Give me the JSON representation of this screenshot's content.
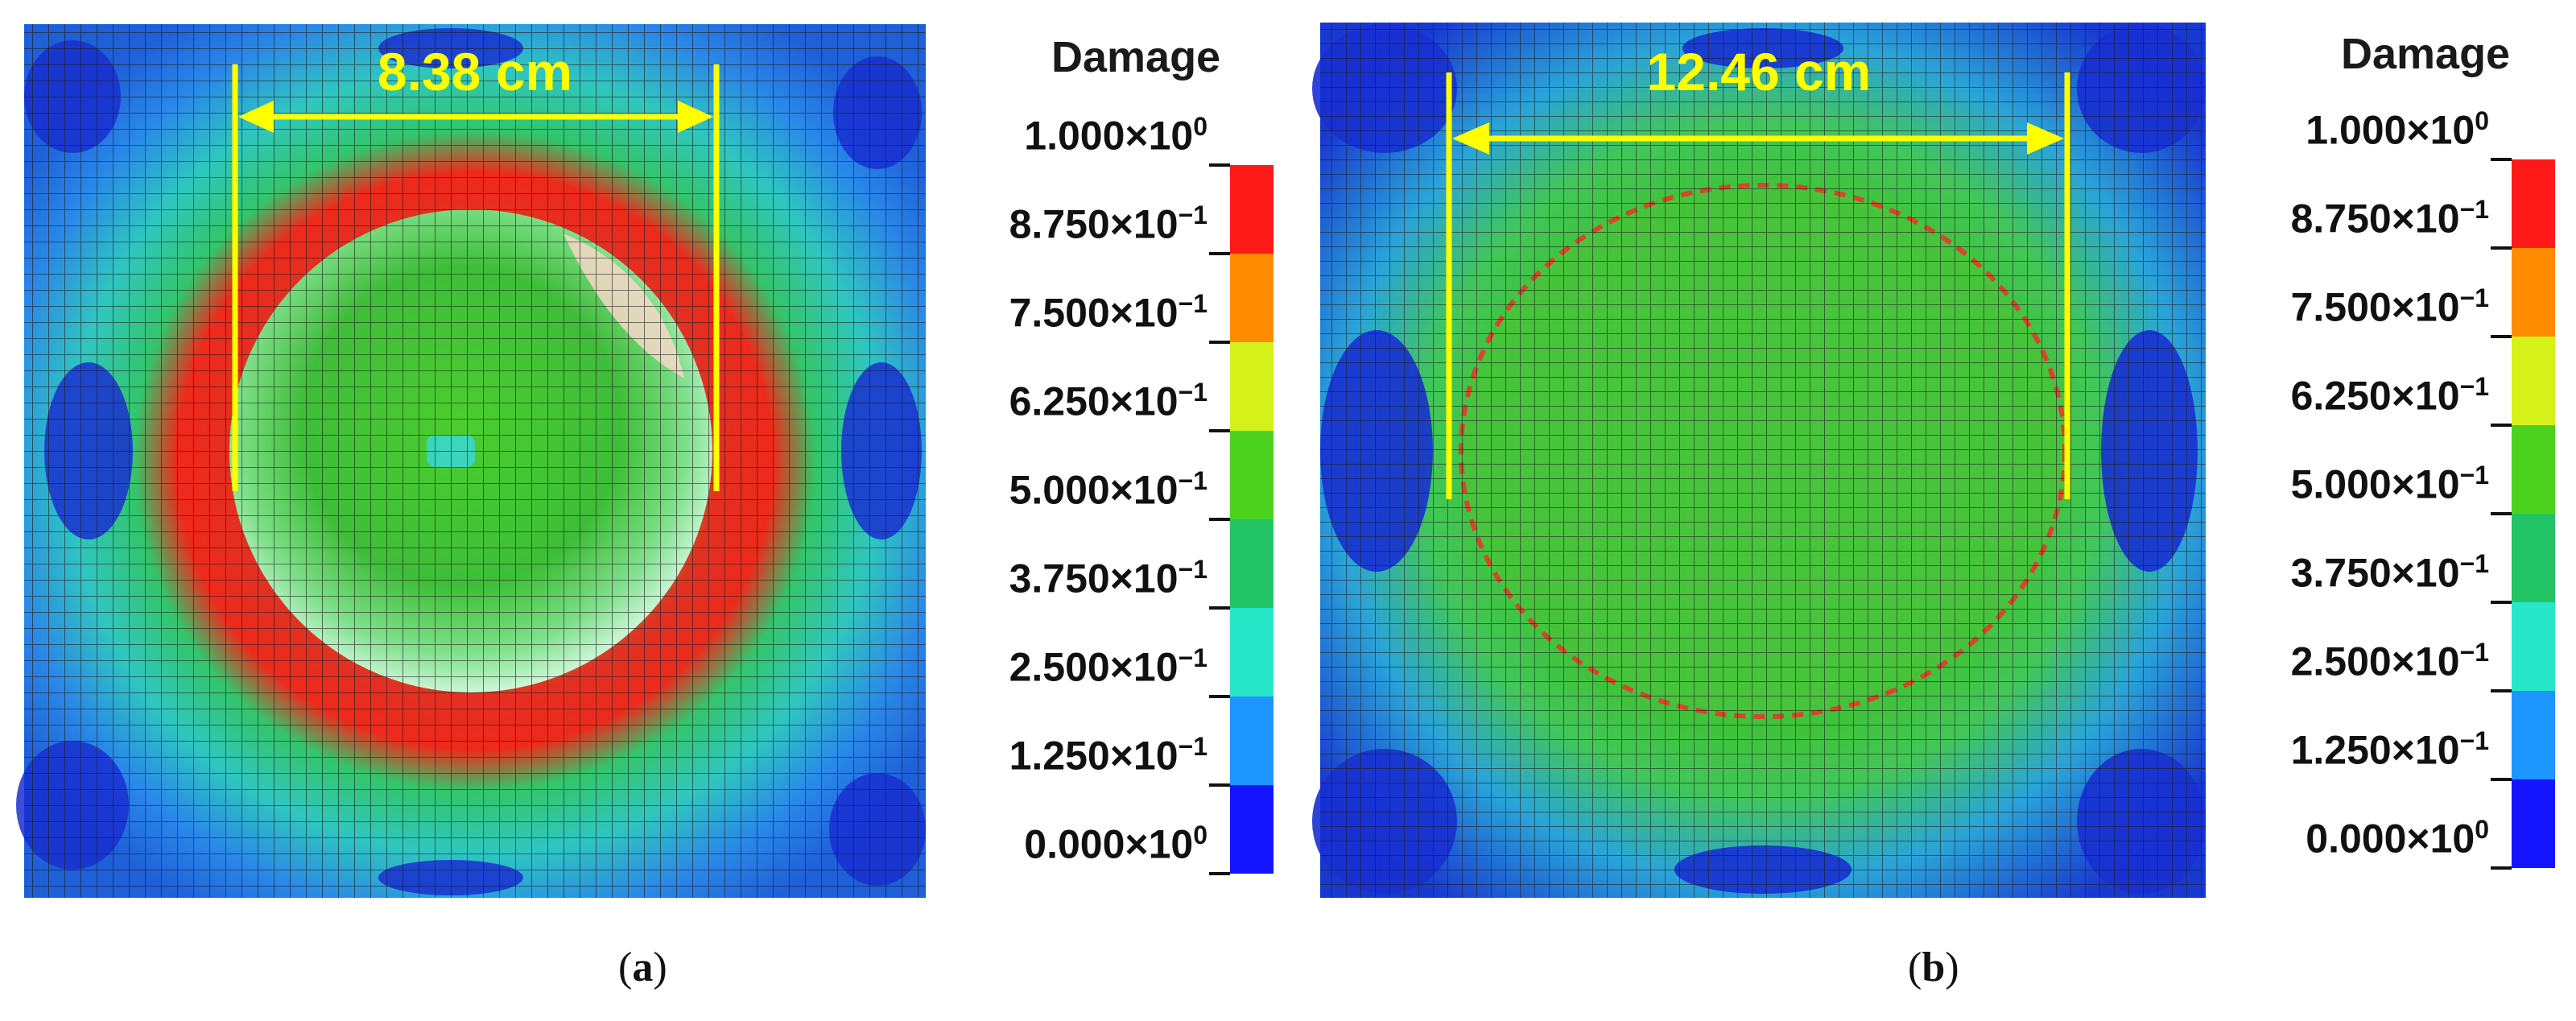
{
  "panels": [
    {
      "id": "a",
      "measurement": "8.38 cm",
      "caption_letter": "a",
      "legend": {
        "title": "Damage",
        "ticks": [
          {
            "base": "1.000×10",
            "exp": "0"
          },
          {
            "base": "8.750×10",
            "exp": "−1"
          },
          {
            "base": "7.500×10",
            "exp": "−1"
          },
          {
            "base": "6.250×10",
            "exp": "−1"
          },
          {
            "base": "5.000×10",
            "exp": "−1"
          },
          {
            "base": "3.750×10",
            "exp": "−1"
          },
          {
            "base": "2.500×10",
            "exp": "−1"
          },
          {
            "base": "1.250×10",
            "exp": "−1"
          },
          {
            "base": "0.000×10",
            "exp": "0"
          }
        ]
      }
    },
    {
      "id": "b",
      "measurement": "12.46 cm",
      "caption_letter": "b",
      "legend": {
        "title": "Damage",
        "ticks": [
          {
            "base": "1.000×10",
            "exp": "0"
          },
          {
            "base": "8.750×10",
            "exp": "−1"
          },
          {
            "base": "7.500×10",
            "exp": "−1"
          },
          {
            "base": "6.250×10",
            "exp": "−1"
          },
          {
            "base": "5.000×10",
            "exp": "−1"
          },
          {
            "base": "3.750×10",
            "exp": "−1"
          },
          {
            "base": "2.500×10",
            "exp": "−1"
          },
          {
            "base": "1.250×10",
            "exp": "−1"
          },
          {
            "base": "0.000×10",
            "exp": "0"
          }
        ]
      }
    }
  ],
  "colors": {
    "scale_top_to_bottom": [
      "#ff1a1a",
      "#ff8c00",
      "#d4f21a",
      "#4cd21e",
      "#22c465",
      "#28e6c8",
      "#1e96ff",
      "#1414ff"
    ],
    "measurement_line": "#ffff00"
  }
}
